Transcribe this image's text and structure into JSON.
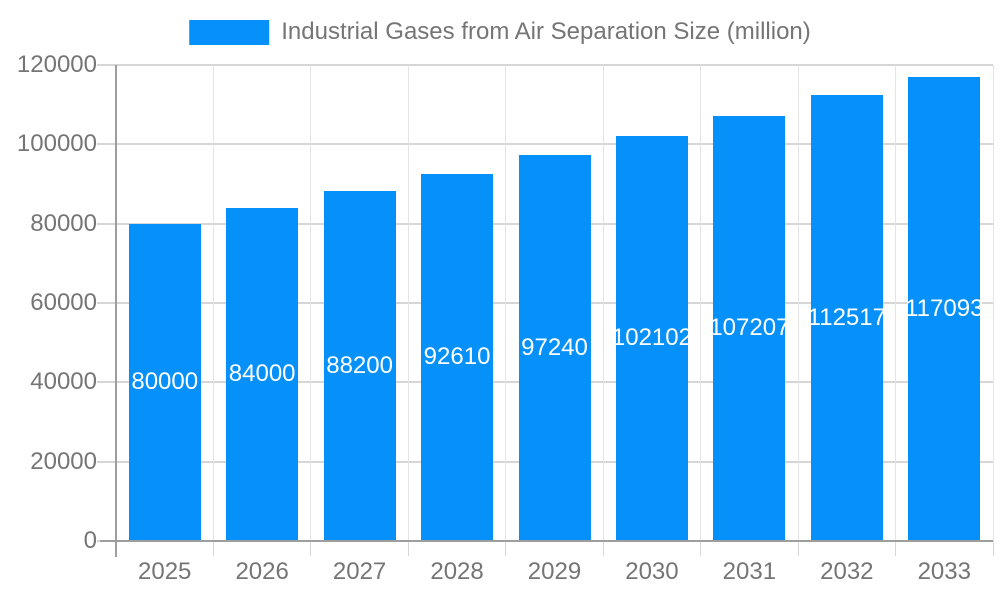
{
  "chart_data": {
    "type": "bar",
    "title": "Industrial Gases from Air Separation Size (million)",
    "legend_position": "top",
    "categories": [
      "2025",
      "2026",
      "2027",
      "2028",
      "2029",
      "2030",
      "2031",
      "2032",
      "2033"
    ],
    "values": [
      80000,
      84000,
      88200,
      92610,
      97240,
      102102,
      107207,
      112517,
      117093
    ],
    "bar_labels": [
      "80000",
      "84000",
      "88200",
      "92610",
      "97240",
      "102102",
      "107207",
      "112517",
      "117093"
    ],
    "xlabel": "",
    "ylabel": "",
    "ylim": [
      0,
      120000
    ],
    "yticks": [
      0,
      20000,
      40000,
      60000,
      80000,
      100000,
      120000
    ],
    "ytick_labels": [
      "0",
      "20000",
      "40000",
      "60000",
      "80000",
      "100000",
      "120000"
    ],
    "grid": true,
    "colors": {
      "bar": "#0590fa",
      "axis_text": "#757575",
      "bar_label": "#ffffff",
      "gridline_h": "#d6d6d6",
      "gridline_v": "#e4e4e4",
      "axis_line": "#9e9e9e",
      "background": "#ffffff"
    }
  }
}
